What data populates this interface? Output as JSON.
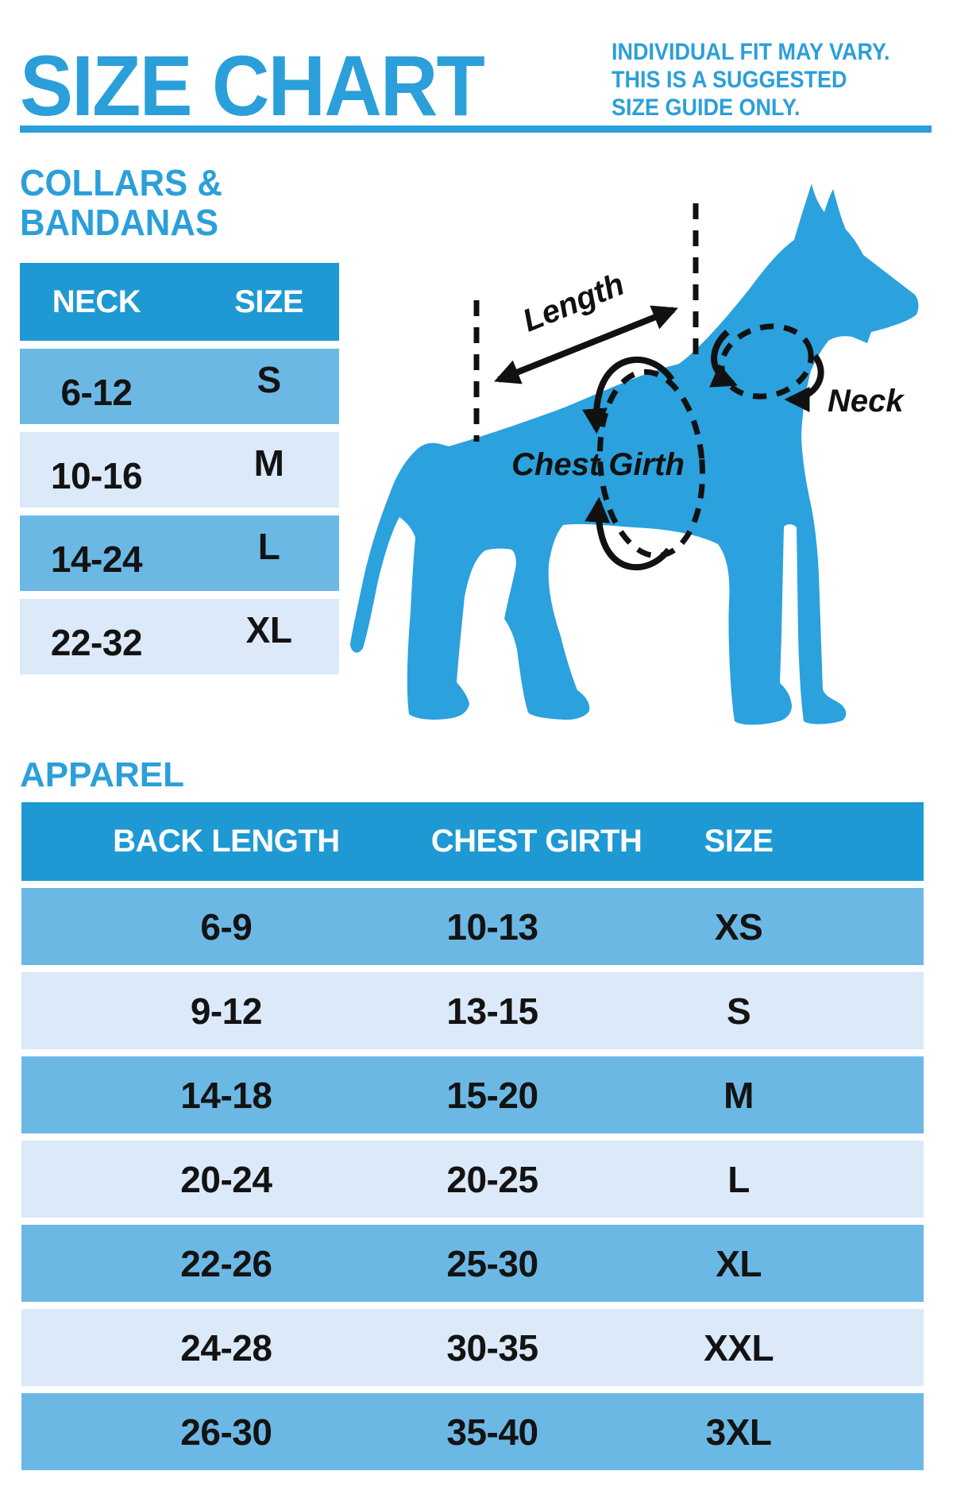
{
  "page": {
    "title": "SIZE CHART",
    "disclaimer_lines": [
      "INDIVIDUAL FIT MAY VARY.",
      "THIS IS A SUGGESTED",
      "SIZE GUIDE ONLY."
    ]
  },
  "colors": {
    "brand_blue": "#2B9FDA",
    "table_header_blue": "#1E99D3",
    "row_medium_blue": "#6CB8E4",
    "row_light_blue": "#DBE9F8",
    "text_black": "#131313",
    "dog_blue": "#2BA1DD"
  },
  "collars": {
    "heading_line1": "COLLARS &",
    "heading_line2": "BANDANAS",
    "columns": [
      "NECK",
      "SIZE"
    ],
    "rows": [
      [
        "6-12",
        "S"
      ],
      [
        "10-16",
        "M"
      ],
      [
        "14-24",
        "L"
      ],
      [
        "22-32",
        "XL"
      ]
    ]
  },
  "apparel": {
    "heading": "APPAREL",
    "columns": [
      "BACK LENGTH",
      "CHEST GIRTH",
      "SIZE"
    ],
    "rows": [
      [
        "6-9",
        "10-13",
        "XS"
      ],
      [
        "9-12",
        "13-15",
        "S"
      ],
      [
        "14-18",
        "15-20",
        "M"
      ],
      [
        "20-24",
        "20-25",
        "L"
      ],
      [
        "22-26",
        "25-30",
        "XL"
      ],
      [
        "24-28",
        "30-35",
        "XXL"
      ],
      [
        "26-30",
        "35-40",
        "3XL"
      ]
    ]
  },
  "diagram": {
    "labels": {
      "length": "Length",
      "neck": "Neck",
      "chest_girth": "Chest Girth"
    }
  }
}
